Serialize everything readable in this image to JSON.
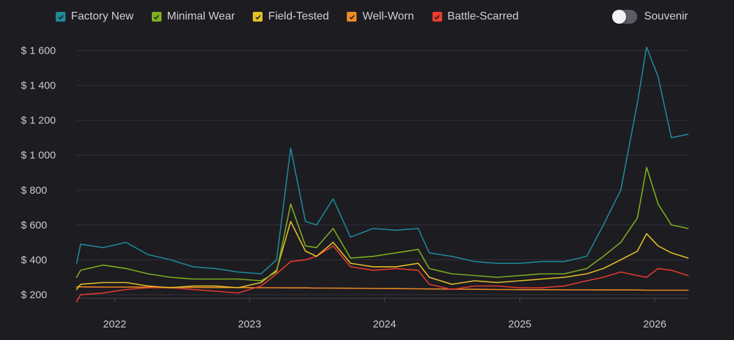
{
  "legend": {
    "items": [
      {
        "label": "Factory New",
        "color": "#1f8a98"
      },
      {
        "label": "Minimal Wear",
        "color": "#7fb01f"
      },
      {
        "label": "Field-Tested",
        "color": "#e6c224"
      },
      {
        "label": "Well-Worn",
        "color": "#f08a24"
      },
      {
        "label": "Battle-Scarred",
        "color": "#ea3b2e"
      }
    ]
  },
  "toggle": {
    "label": "Souvenir",
    "on": false
  },
  "chart_data": {
    "type": "line",
    "title": "",
    "xlabel": "",
    "ylabel": "",
    "grid": true,
    "legend_position": "top-left",
    "ylim": [
      180,
      1650
    ],
    "xlim": [
      "2021-09-20",
      "2026-04-01"
    ],
    "y_ticks": [
      200,
      400,
      600,
      800,
      1000,
      1200,
      1400,
      1600
    ],
    "y_tick_labels": [
      "$ 200",
      "$ 400",
      "$ 600",
      "$ 800",
      "$ 1 000",
      "$ 1 200",
      "$ 1 400",
      "$ 1 600"
    ],
    "x_ticks": [
      "2022-01-01",
      "2023-01-01",
      "2024-01-01",
      "2025-01-01",
      "2026-01-01"
    ],
    "x_tick_labels": [
      "2022",
      "2023",
      "2024",
      "2025",
      "2026"
    ],
    "x": [
      "2021-09-20",
      "2021-10-01",
      "2021-12-01",
      "2022-02-01",
      "2022-04-01",
      "2022-06-01",
      "2022-08-01",
      "2022-10-01",
      "2022-12-01",
      "2023-02-01",
      "2023-03-15",
      "2023-04-22",
      "2023-06-01",
      "2023-07-01",
      "2023-08-15",
      "2023-10-01",
      "2023-12-01",
      "2024-02-01",
      "2024-04-01",
      "2024-05-01",
      "2024-07-01",
      "2024-09-01",
      "2024-11-01",
      "2025-01-01",
      "2025-03-01",
      "2025-05-01",
      "2025-07-01",
      "2025-08-15",
      "2025-10-01",
      "2025-11-15",
      "2025-12-10",
      "2026-01-10",
      "2026-02-15",
      "2026-04-01"
    ],
    "series": [
      {
        "name": "Factory New",
        "color": "#1f8a98",
        "values": [
          380,
          490,
          470,
          500,
          430,
          400,
          360,
          350,
          330,
          320,
          400,
          1040,
          620,
          600,
          750,
          530,
          580,
          570,
          580,
          440,
          420,
          390,
          380,
          380,
          390,
          390,
          420,
          600,
          800,
          1300,
          1620,
          1450,
          1100,
          1120
        ]
      },
      {
        "name": "Minimal Wear",
        "color": "#7fb01f",
        "values": [
          300,
          340,
          370,
          350,
          320,
          300,
          290,
          290,
          290,
          280,
          330,
          720,
          480,
          470,
          580,
          410,
          420,
          440,
          460,
          350,
          320,
          310,
          300,
          310,
          320,
          320,
          350,
          420,
          500,
          640,
          930,
          720,
          600,
          580
        ]
      },
      {
        "name": "Field-Tested",
        "color": "#e6c224",
        "values": [
          230,
          260,
          270,
          270,
          250,
          240,
          250,
          250,
          240,
          270,
          340,
          620,
          450,
          420,
          500,
          380,
          360,
          360,
          380,
          300,
          260,
          280,
          270,
          280,
          290,
          300,
          320,
          350,
          400,
          450,
          550,
          480,
          440,
          410
        ]
      },
      {
        "name": "Well-Worn",
        "color": "#f08a24",
        "values": [
          245,
          245,
          244,
          244,
          243,
          242,
          242,
          241,
          241,
          240,
          240,
          239,
          239,
          238,
          238,
          237,
          236,
          235,
          234,
          233,
          232,
          231,
          230,
          229,
          229,
          228,
          228,
          227,
          227,
          227,
          226,
          226,
          226,
          226
        ]
      },
      {
        "name": "Battle-Scarred",
        "color": "#ea3b2e",
        "values": [
          160,
          200,
          210,
          230,
          240,
          240,
          230,
          220,
          210,
          250,
          320,
          390,
          400,
          420,
          480,
          360,
          340,
          350,
          340,
          260,
          230,
          250,
          250,
          240,
          240,
          250,
          280,
          300,
          330,
          310,
          300,
          350,
          340,
          310
        ]
      }
    ]
  }
}
